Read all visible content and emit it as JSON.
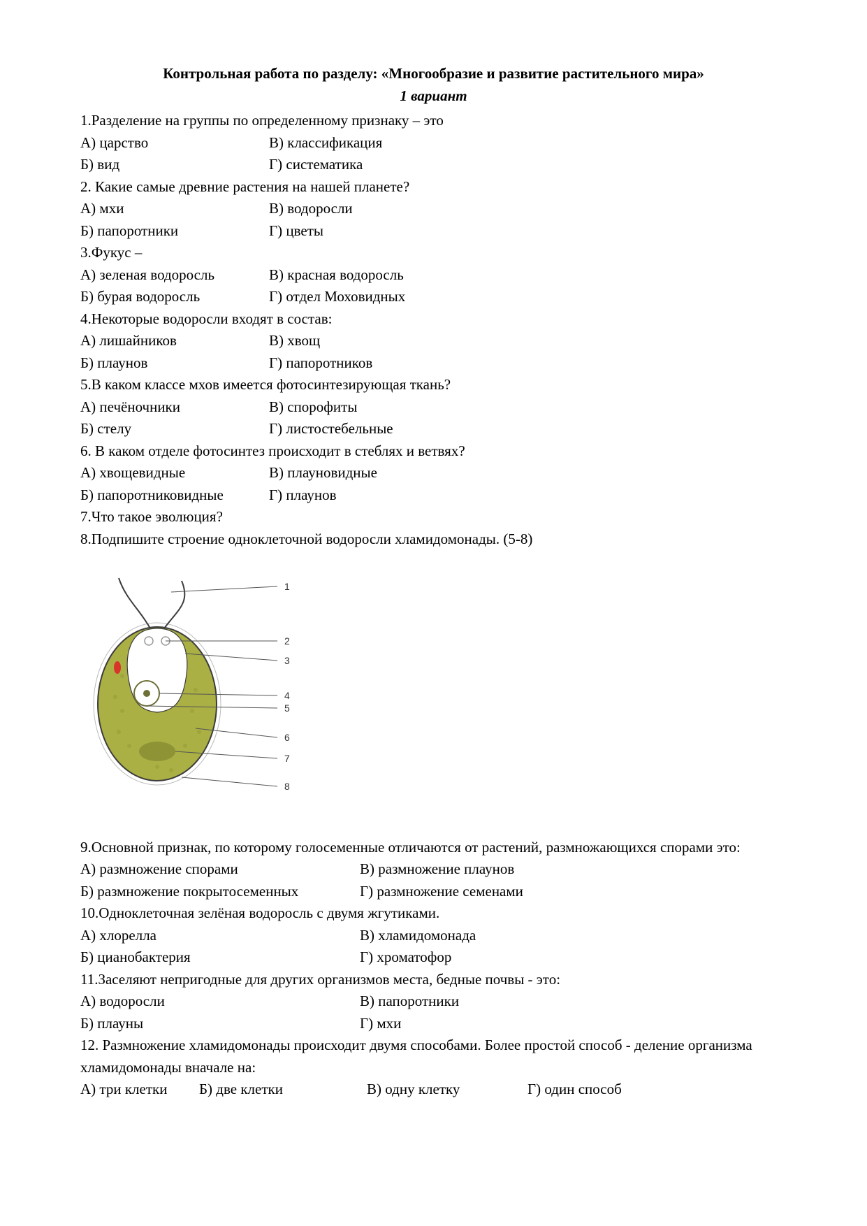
{
  "title": "Контрольная работа по разделу: «Многообразие и развитие растительного мира»",
  "subtitle": "1 вариант",
  "q1": {
    "text": "1.Разделение на группы по определенному признаку – это",
    "a": "А) царство",
    "b": "Б) вид",
    "v": "В) классификация",
    "g": "Г) систематика"
  },
  "q2": {
    "text": "2. Какие самые древние растения на нашей планете?",
    "a": "А) мхи",
    "b": "Б) папоротники",
    "v": "В) водоросли",
    "g": "Г) цветы"
  },
  "q3": {
    "text": "3.Фукус –",
    "a": "А) зеленая водоросль",
    "b": "Б) бурая водоросль",
    "v": "В) красная водоросль",
    "g": "Г) отдел Моховидных"
  },
  "q4": {
    "text": "4.Некоторые водоросли входят в состав:",
    "a": "А) лишайников",
    "b": "Б) плаунов",
    "v": "В) хвощ",
    "g": "Г) папоротников"
  },
  "q5": {
    "text": "5.В каком классе мхов имеется фотосинтезирующая ткань?",
    "a": "А) печёночники",
    "b": "Б) стелу",
    "v": "В) спорофиты",
    "g": "Г) листостебельные"
  },
  "q6": {
    "text": "6. В каком отделе фотосинтез происходит в стеблях и ветвях?",
    "a": "А) хвощевидные",
    "b": "Б) папоротниковидные",
    "v": "В) плауновидные",
    "g": "Г) плаунов"
  },
  "q7": {
    "text": "7.Что такое эволюция?"
  },
  "q8": {
    "text": "8.Подпишите строение одноклеточной водоросли хламидомонады. (5-8)"
  },
  "diagram": {
    "labels": [
      "1",
      "2",
      "3",
      "4",
      "5",
      "6",
      "7",
      "8"
    ],
    "body_fill": "#aab043",
    "body_stroke": "#3c3c3c",
    "inner_fill": "#ffffff",
    "eyespot_fill": "#d9342a",
    "pyrenoid_fill": "#8b9035",
    "nucleus_stroke": "#6d6f36",
    "nucleolus_fill": "#6d6f36",
    "vacuole_stroke": "#9a9a9a",
    "line_color": "#555555",
    "label_color": "#333333",
    "label_fontsize": 14,
    "bg": "#ffffff"
  },
  "q9": {
    "text": "9.Основной признак, по которому голосеменные отличаются от растений, размножающихся спорами это:",
    "a": "А) размножение спорами",
    "b": "Б) размножение покрытосеменных",
    "v": "В) размножение  плаунов",
    "g": "Г) размножение семенами"
  },
  "q10": {
    "text": "10.Одноклеточная зелёная водоросль с двумя жгутиками.",
    "a": "А) хлорелла",
    "b": "Б) цианобактерия",
    "v": "В) хламидомонада",
    "g": "Г) хроматофор"
  },
  "q11": {
    "text": "11.Заселяют непригодные для других организмов места, бедные почвы -  это:",
    "a": "А) водоросли",
    "b": "Б) плауны",
    "v": "В) папоротники",
    "g": "Г) мхи"
  },
  "q12": {
    "text": "12. Размножение хламидомонады происходит двумя способами. Более простой способ - деление организма хламидомонады вначале на:",
    "a": "А) три клетки",
    "b": "Б) две клетки",
    "v": "В) одну клетку",
    "g": "Г) один способ"
  }
}
